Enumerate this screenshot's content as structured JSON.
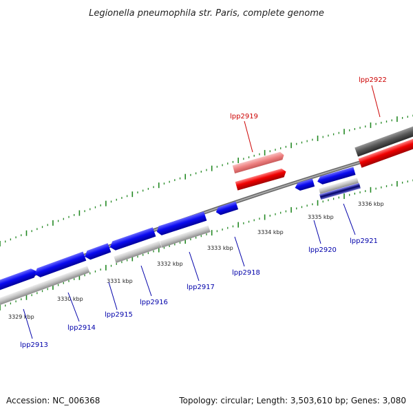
{
  "title": "Legionella pneumophila str. Paris, complete genome",
  "footer": {
    "accession": "Accession: NC_006368",
    "summary": "Topology: circular; Length: 3,503,610 bp; Genes: 3,080"
  },
  "colors": {
    "forward_gene": "#0a0af0",
    "reverse_gene_red": "#f00000",
    "pseudo_red": "#f08888",
    "grey_track": "#bbbbbb",
    "dark_grey_track": "#555555",
    "backbone": "#888888",
    "tick": "#228822",
    "label_blue": "#0000aa",
    "label_red": "#cc0000"
  },
  "kbp_ticks": [
    "3329 kbp",
    "3330 kbp",
    "3331 kbp",
    "3332 kbp",
    "3333 kbp",
    "3334 kbp",
    "3335 kbp",
    "3336 kbp"
  ],
  "gene_labels": [
    {
      "text": "lpp2913",
      "color": "blue"
    },
    {
      "text": "lpp2914",
      "color": "blue"
    },
    {
      "text": "lpp2915",
      "color": "blue"
    },
    {
      "text": "lpp2916",
      "color": "blue"
    },
    {
      "text": "lpp2917",
      "color": "blue"
    },
    {
      "text": "lpp2918",
      "color": "blue"
    },
    {
      "text": "lpp2919",
      "color": "red"
    },
    {
      "text": "lpp2920",
      "color": "blue"
    },
    {
      "text": "lpp2921",
      "color": "blue"
    },
    {
      "text": "lpp2922",
      "color": "red"
    }
  ]
}
